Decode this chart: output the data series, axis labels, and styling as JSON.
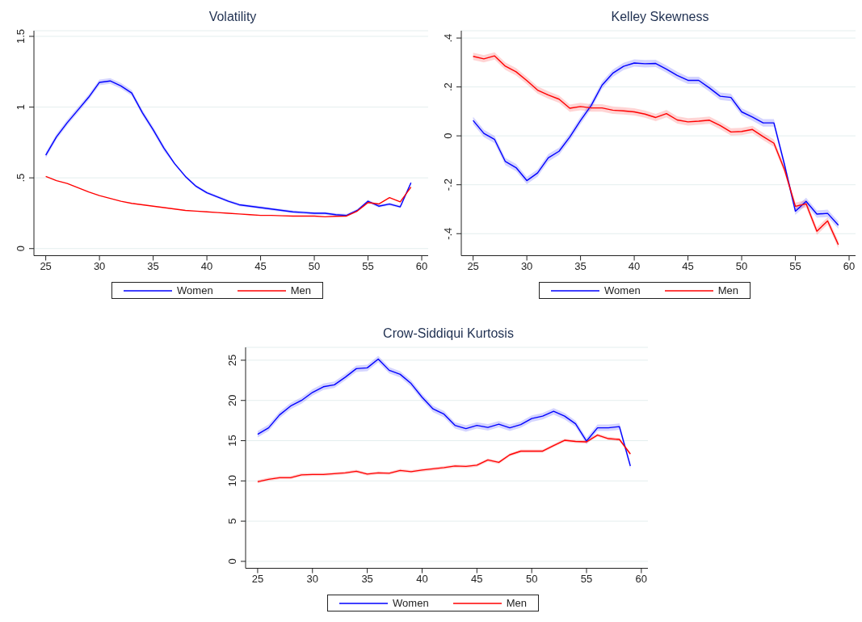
{
  "chart_data": [
    {
      "type": "line",
      "title": "Volatility",
      "x": [
        25,
        26,
        27,
        28,
        29,
        30,
        31,
        32,
        33,
        34,
        35,
        36,
        37,
        38,
        39,
        40,
        41,
        42,
        43,
        44,
        45,
        46,
        47,
        48,
        49,
        50,
        51,
        52,
        53,
        54,
        55,
        56,
        57,
        58,
        59
      ],
      "xlim": [
        23.9,
        60.6
      ],
      "xticks": [
        25,
        30,
        35,
        40,
        45,
        50,
        55,
        60
      ],
      "ylim": [
        -0.05,
        1.54
      ],
      "yticks": [
        0,
        {
          "value": 0.5,
          "label": ".5"
        },
        1,
        1.5
      ],
      "grid": "y",
      "legend": "bottom",
      "marker": "none",
      "line_style": "solid",
      "series": [
        {
          "name": "Women",
          "color": "#0000ff",
          "values": [
            0.66,
            0.79,
            0.89,
            0.98,
            1.07,
            1.175,
            1.185,
            1.15,
            1.1,
            0.96,
            0.84,
            0.71,
            0.6,
            0.51,
            0.44,
            0.395,
            0.365,
            0.335,
            0.31,
            0.3,
            0.29,
            0.28,
            0.27,
            0.26,
            0.255,
            0.25,
            0.25,
            0.24,
            0.235,
            0.27,
            0.335,
            0.3,
            0.315,
            0.295,
            0.465
          ],
          "lower": [
            0.64,
            0.77,
            0.87,
            0.96,
            1.05,
            1.155,
            1.165,
            1.13,
            1.08,
            0.94,
            0.82,
            0.69,
            0.59,
            0.5,
            0.43,
            0.385,
            0.355,
            0.325,
            0.3,
            0.29,
            0.28,
            0.27,
            0.26,
            0.25,
            0.245,
            0.24,
            0.24,
            0.23,
            0.225,
            0.26,
            0.325,
            0.29,
            0.305,
            0.285,
            0.455
          ],
          "upper": [
            0.68,
            0.81,
            0.91,
            1.0,
            1.09,
            1.195,
            1.205,
            1.17,
            1.12,
            0.98,
            0.86,
            0.73,
            0.61,
            0.52,
            0.45,
            0.405,
            0.375,
            0.345,
            0.32,
            0.31,
            0.3,
            0.29,
            0.28,
            0.27,
            0.265,
            0.26,
            0.26,
            0.25,
            0.245,
            0.28,
            0.345,
            0.31,
            0.325,
            0.305,
            0.475
          ]
        },
        {
          "name": "Men",
          "color": "#ff0000",
          "values": [
            0.51,
            0.48,
            0.46,
            0.43,
            0.4,
            0.375,
            0.355,
            0.335,
            0.32,
            0.31,
            0.3,
            0.29,
            0.28,
            0.27,
            0.265,
            0.26,
            0.255,
            0.25,
            0.245,
            0.24,
            0.235,
            0.235,
            0.232,
            0.23,
            0.23,
            0.23,
            0.225,
            0.228,
            0.23,
            0.265,
            0.325,
            0.315,
            0.36,
            0.33,
            0.435
          ]
        }
      ]
    },
    {
      "type": "line",
      "title": "Kelley Skewness",
      "x": [
        25,
        26,
        27,
        28,
        29,
        30,
        31,
        32,
        33,
        34,
        35,
        36,
        37,
        38,
        39,
        40,
        41,
        42,
        43,
        44,
        45,
        46,
        47,
        48,
        49,
        50,
        51,
        52,
        53,
        54,
        55,
        56,
        57,
        58,
        59
      ],
      "xlim": [
        23.9,
        60.6
      ],
      "xticks": [
        25,
        30,
        35,
        40,
        45,
        50,
        55,
        60
      ],
      "ylim": [
        -0.49,
        0.43
      ],
      "yticks": [
        {
          "value": -0.4,
          "label": "-.4"
        },
        {
          "value": -0.2,
          "label": "-.2"
        },
        0,
        {
          "value": 0.2,
          "label": ".2"
        },
        {
          "value": 0.4,
          "label": ".4"
        }
      ],
      "grid": "y",
      "legend": "bottom",
      "marker": "none",
      "line_style": "solid",
      "series": [
        {
          "name": "Women",
          "color": "#0000ff",
          "values": [
            0.063,
            0.01,
            -0.015,
            -0.105,
            -0.13,
            -0.183,
            -0.152,
            -0.09,
            -0.063,
            -0.005,
            0.063,
            0.125,
            0.207,
            0.256,
            0.284,
            0.298,
            0.295,
            0.296,
            0.273,
            0.247,
            0.227,
            0.227,
            0.196,
            0.162,
            0.157,
            0.098,
            0.077,
            0.053,
            0.053,
            -0.12,
            -0.308,
            -0.268,
            -0.32,
            -0.317,
            -0.365
          ],
          "lower": [
            0.048,
            -0.005,
            -0.03,
            -0.12,
            -0.145,
            -0.198,
            -0.167,
            -0.105,
            -0.078,
            -0.02,
            0.048,
            0.11,
            0.192,
            0.241,
            0.269,
            0.283,
            0.28,
            0.281,
            0.258,
            0.232,
            0.212,
            0.212,
            0.181,
            0.147,
            0.142,
            0.083,
            0.062,
            0.038,
            0.038,
            -0.135,
            -0.323,
            -0.283,
            -0.335,
            -0.332,
            -0.38
          ],
          "upper": [
            0.078,
            0.025,
            0,
            -0.09,
            -0.115,
            -0.168,
            -0.137,
            -0.075,
            -0.048,
            0.01,
            0.078,
            0.14,
            0.222,
            0.271,
            0.299,
            0.313,
            0.31,
            0.311,
            0.288,
            0.262,
            0.242,
            0.242,
            0.211,
            0.177,
            0.172,
            0.113,
            0.092,
            0.068,
            0.068,
            -0.105,
            -0.293,
            -0.253,
            -0.305,
            -0.302,
            -0.35
          ]
        },
        {
          "name": "Men",
          "color": "#ff0000",
          "values": [
            0.325,
            0.315,
            0.327,
            0.285,
            0.262,
            0.226,
            0.187,
            0.167,
            0.15,
            0.113,
            0.12,
            0.114,
            0.114,
            0.105,
            0.102,
            0.098,
            0.089,
            0.075,
            0.091,
            0.065,
            0.057,
            0.06,
            0.064,
            0.042,
            0.016,
            0.018,
            0.026,
            -0.003,
            -0.03,
            -0.14,
            -0.288,
            -0.278,
            -0.39,
            -0.348,
            -0.445
          ],
          "lower": [
            0.31,
            0.3,
            0.312,
            0.27,
            0.247,
            0.211,
            0.172,
            0.152,
            0.135,
            0.098,
            0.105,
            0.099,
            0.099,
            0.09,
            0.087,
            0.083,
            0.074,
            0.06,
            0.076,
            0.05,
            0.042,
            0.045,
            0.049,
            0.027,
            0.001,
            0.003,
            0.011,
            -0.018,
            -0.045,
            -0.155,
            -0.303,
            -0.293,
            -0.405,
            -0.363,
            -0.46
          ],
          "upper": [
            0.34,
            0.33,
            0.342,
            0.3,
            0.277,
            0.241,
            0.202,
            0.182,
            0.165,
            0.128,
            0.135,
            0.129,
            0.129,
            0.12,
            0.117,
            0.113,
            0.104,
            0.09,
            0.106,
            0.08,
            0.072,
            0.075,
            0.079,
            0.057,
            0.031,
            0.033,
            0.041,
            0.012,
            -0.015,
            -0.125,
            -0.273,
            -0.263,
            -0.375,
            -0.333,
            -0.43
          ]
        }
      ]
    },
    {
      "type": "line",
      "title": "Crow-Siddiqui Kurtosis",
      "x": [
        25,
        26,
        27,
        28,
        29,
        30,
        31,
        32,
        33,
        34,
        35,
        36,
        37,
        38,
        39,
        40,
        41,
        42,
        43,
        44,
        45,
        46,
        47,
        48,
        49,
        50,
        51,
        52,
        53,
        54,
        55,
        56,
        57,
        58,
        59
      ],
      "xlim": [
        23.9,
        60.6
      ],
      "xticks": [
        25,
        30,
        35,
        40,
        45,
        50,
        55,
        60
      ],
      "ylim": [
        -0.86,
        26.6
      ],
      "yticks": [
        0,
        5,
        10,
        15,
        20,
        25
      ],
      "grid": "y",
      "legend": "bottom",
      "marker": "none",
      "line_style": "solid",
      "series": [
        {
          "name": "Women",
          "color": "#0000ff",
          "values": [
            15.8,
            16.6,
            18.2,
            19.3,
            20.0,
            21.0,
            21.7,
            21.95,
            22.9,
            23.95,
            24.05,
            25.15,
            23.75,
            23.25,
            22.1,
            20.4,
            18.95,
            18.3,
            16.9,
            16.5,
            16.9,
            16.65,
            17.05,
            16.6,
            17.0,
            17.75,
            18.05,
            18.65,
            18.05,
            17.1,
            14.95,
            16.6,
            16.6,
            16.75,
            11.85
          ],
          "lower": [
            15.4,
            16.2,
            17.8,
            18.9,
            19.6,
            20.6,
            21.3,
            21.55,
            22.5,
            23.55,
            23.65,
            24.75,
            23.35,
            22.85,
            21.7,
            20.0,
            18.55,
            17.9,
            16.5,
            16.1,
            16.5,
            16.25,
            16.65,
            16.2,
            16.6,
            17.35,
            17.65,
            18.25,
            17.65,
            16.7,
            14.55,
            16.2,
            16.2,
            16.35,
            11.45
          ],
          "upper": [
            16.2,
            17.0,
            18.6,
            19.7,
            20.4,
            21.4,
            22.1,
            22.35,
            23.3,
            24.35,
            24.45,
            25.55,
            24.15,
            23.65,
            22.5,
            20.8,
            19.35,
            18.7,
            17.3,
            16.9,
            17.3,
            17.05,
            17.45,
            17.0,
            17.4,
            18.15,
            18.45,
            19.05,
            18.45,
            17.5,
            15.35,
            17.0,
            17.0,
            17.15,
            12.25
          ]
        },
        {
          "name": "Men",
          "color": "#ff0000",
          "values": [
            9.9,
            10.2,
            10.4,
            10.4,
            10.75,
            10.8,
            10.8,
            10.9,
            11.0,
            11.2,
            10.85,
            11.0,
            10.95,
            11.3,
            11.15,
            11.35,
            11.5,
            11.65,
            11.85,
            11.8,
            11.95,
            12.6,
            12.3,
            13.25,
            13.7,
            13.7,
            13.7,
            14.4,
            15.05,
            14.9,
            14.85,
            15.7,
            15.25,
            15.15,
            13.35
          ],
          "lower": [
            9.7,
            10.0,
            10.2,
            10.2,
            10.55,
            10.6,
            10.6,
            10.7,
            10.8,
            11.0,
            10.65,
            10.8,
            10.75,
            11.1,
            10.95,
            11.15,
            11.3,
            11.45,
            11.65,
            11.6,
            11.75,
            12.4,
            12.1,
            13.05,
            13.5,
            13.5,
            13.5,
            14.2,
            14.85,
            14.7,
            14.65,
            15.5,
            15.05,
            14.95,
            13.15
          ],
          "upper": [
            10.1,
            10.4,
            10.6,
            10.6,
            10.95,
            11.0,
            11.0,
            11.1,
            11.2,
            11.4,
            11.05,
            11.2,
            11.15,
            11.5,
            11.35,
            11.55,
            11.7,
            11.85,
            12.05,
            12.0,
            12.15,
            12.8,
            12.5,
            13.45,
            13.9,
            13.9,
            13.9,
            14.6,
            15.25,
            15.1,
            15.05,
            15.9,
            15.45,
            15.35,
            13.55
          ]
        }
      ]
    }
  ]
}
